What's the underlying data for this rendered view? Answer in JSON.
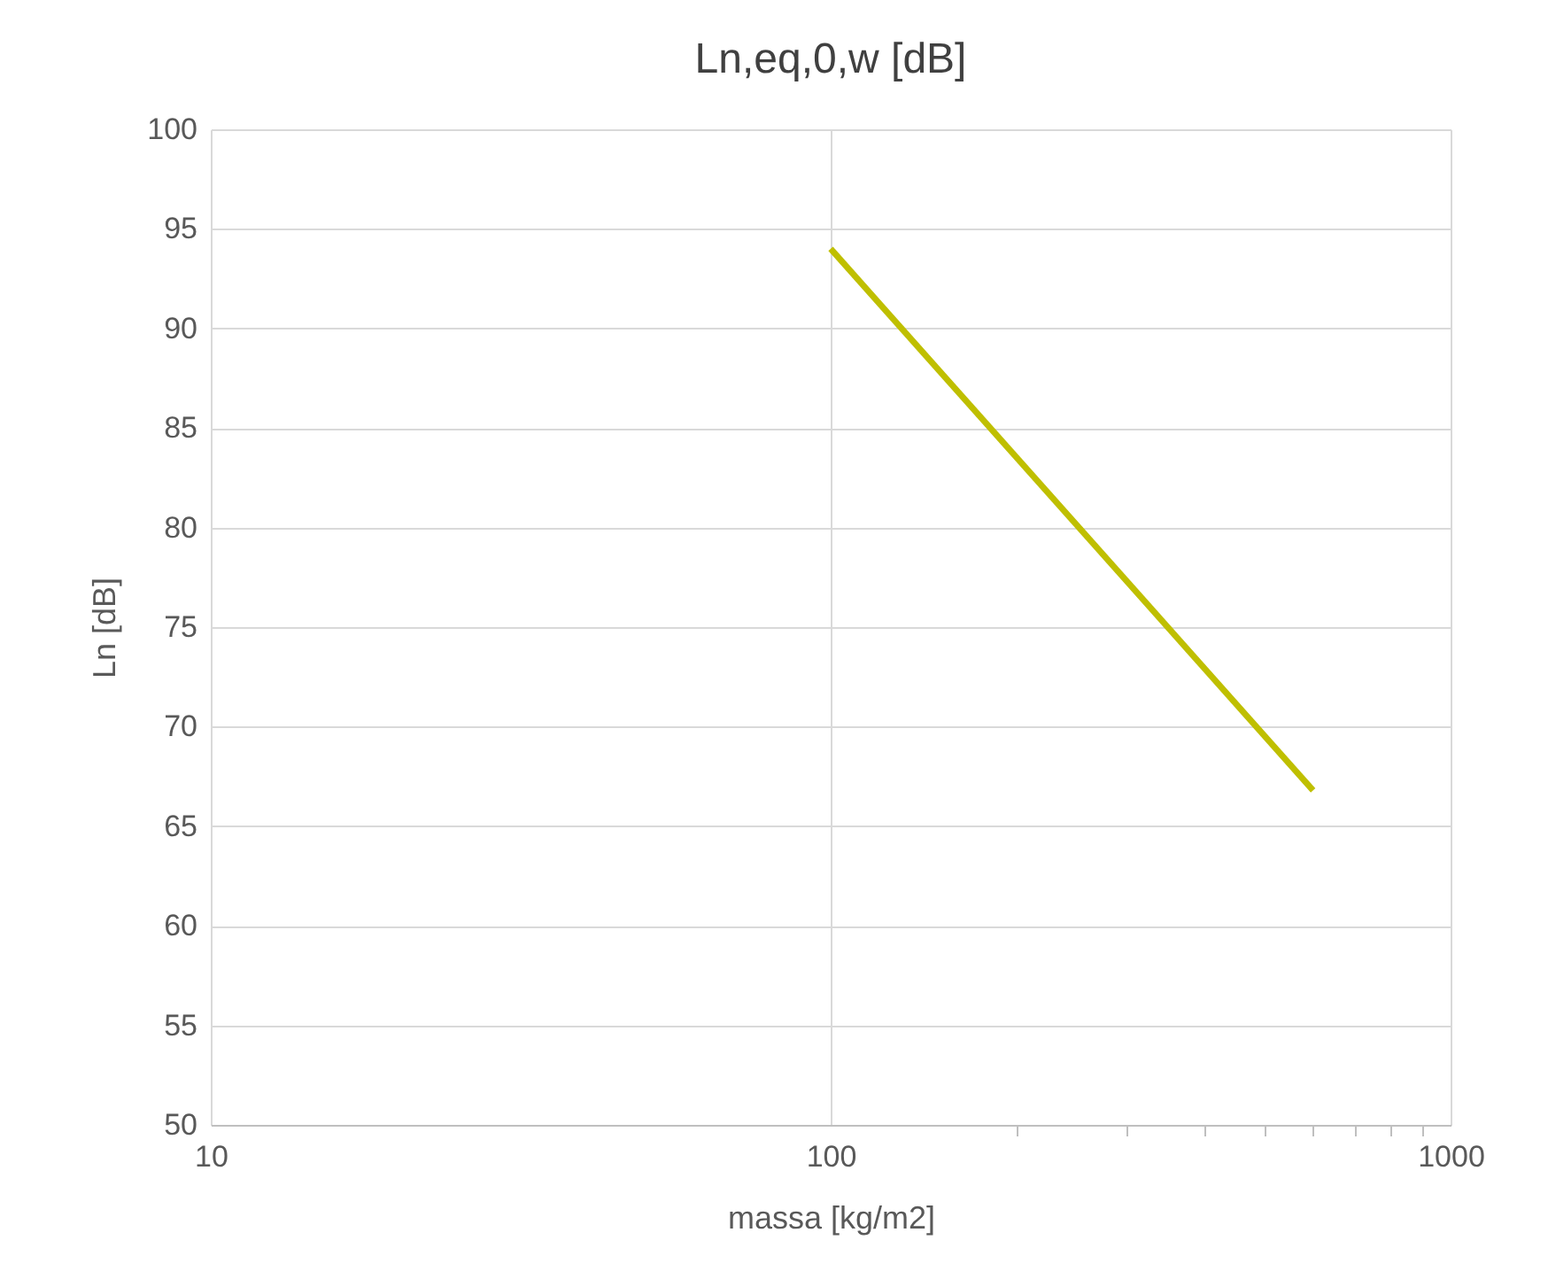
{
  "chart_data": {
    "type": "line",
    "title": "Ln,eq,0,w [dB]",
    "xlabel": "massa [kg/m2]",
    "ylabel": "Ln [dB]",
    "x": [
      100,
      600
    ],
    "series": [
      {
        "color": "#bfbf00",
        "values": [
          94,
          66.8
        ]
      }
    ],
    "log": "x",
    "xlim": [
      10,
      1000
    ],
    "xticks": [
      10,
      100,
      {
        "value": 200,
        "label": null
      },
      {
        "value": 300,
        "label": null
      },
      {
        "value": 400,
        "label": null
      },
      {
        "value": 500,
        "label": null
      },
      {
        "value": 600,
        "label": null
      },
      {
        "value": 700,
        "label": null
      },
      {
        "value": 800,
        "label": null
      },
      {
        "value": 900,
        "label": null
      },
      1000
    ],
    "ylim": [
      50,
      100
    ],
    "yticks": [
      50,
      55,
      60,
      65,
      70,
      75,
      80,
      85,
      90,
      95,
      100
    ],
    "grid": true,
    "marker": "none",
    "line_style": "solid",
    "legend": false
  }
}
